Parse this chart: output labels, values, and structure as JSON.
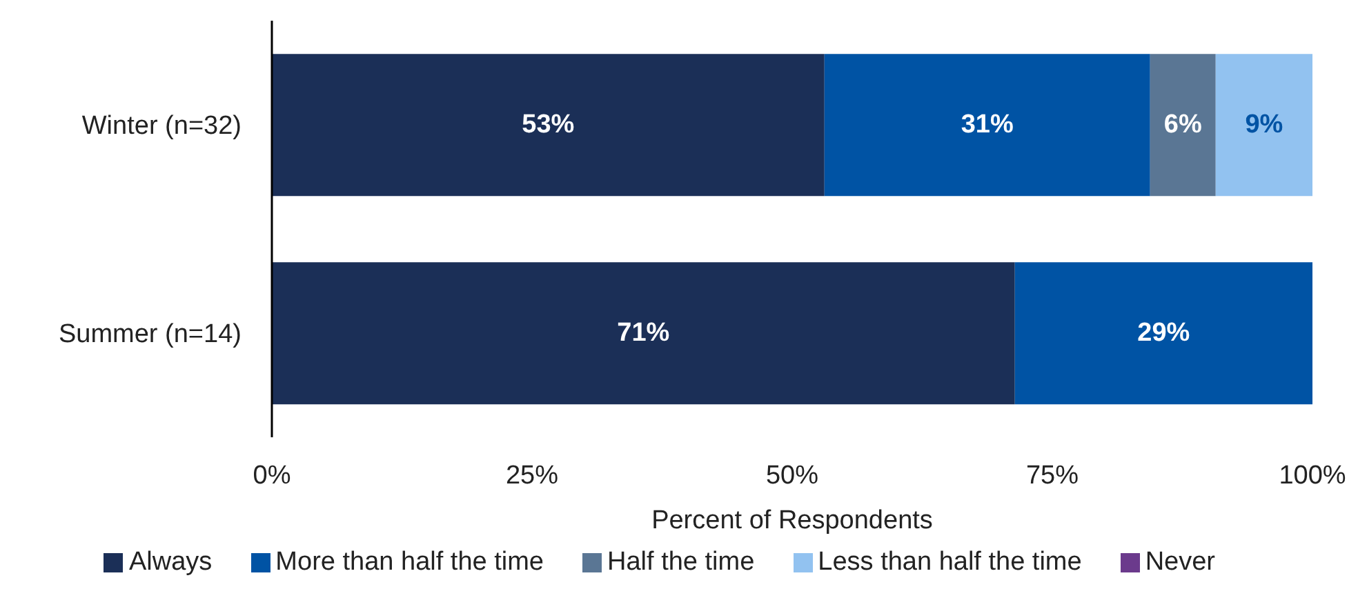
{
  "chart_data": {
    "type": "bar",
    "orientation": "horizontal",
    "stacked": true,
    "categories": [
      "Winter (n=32)",
      "Summer (n=14)"
    ],
    "xlabel": "Percent of Respondents",
    "xlim": [
      0,
      100
    ],
    "xticks": [
      {
        "value": 0,
        "label": "0%"
      },
      {
        "value": 25,
        "label": "25%"
      },
      {
        "value": 50,
        "label": "50%"
      },
      {
        "value": 75,
        "label": "75%"
      },
      {
        "value": 100,
        "label": "100%"
      }
    ],
    "series": [
      {
        "name": "Always",
        "color": "#1b2f57",
        "values": [
          53.1,
          71.4
        ],
        "value_labels": [
          "53%",
          "71%"
        ]
      },
      {
        "name": "More than half the time",
        "color": "#0053a4",
        "values": [
          31.3,
          28.6
        ],
        "value_labels": [
          "31%",
          "29%"
        ]
      },
      {
        "name": "Half the time",
        "color": "#5a7694",
        "values": [
          6.3,
          0
        ],
        "value_labels": [
          "6%",
          null
        ]
      },
      {
        "name": "Less than half the time",
        "color": "#92c2f0",
        "values": [
          9.4,
          0
        ],
        "value_labels": [
          "9%",
          null
        ]
      },
      {
        "name": "Never",
        "color": "#6b3a8c",
        "values": [
          0,
          0
        ],
        "value_labels": [
          null,
          null
        ]
      }
    ],
    "grid": false,
    "legend": "bottom"
  }
}
